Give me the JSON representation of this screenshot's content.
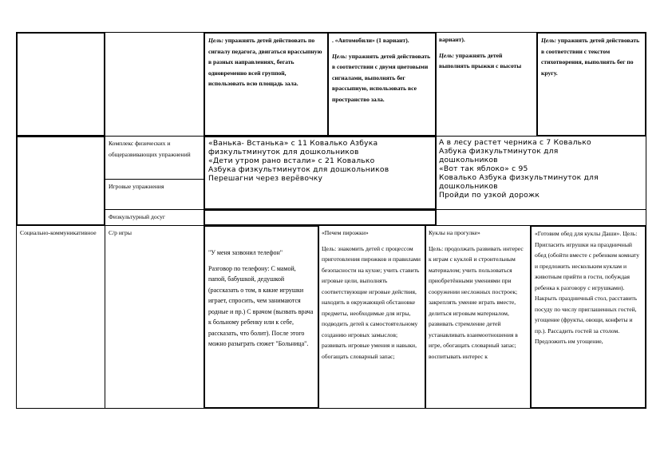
{
  "top_row": {
    "col3": {
      "goal_label": "Цель:",
      "goal_text": "упражнять детей действовать по сигналу педагога, двигаться врассыпную в разных направлениях, бегать одновременно всей группой, использовать всю площадь зала."
    },
    "col4": {
      "title": ". «Автомобили» (1 вариант).",
      "goal_label": "Цель:",
      "goal_text": "упражнять детей действовать в соответствии с двумя цветовыми сигналами, выполнять бег врассыпную, использовать все пространство зала."
    },
    "col5": {
      "title": "вариант).",
      "goal_label": "Цель:",
      "goal_text": "упражнять детей выполнять прыжки с высоты"
    },
    "col6": {
      "goal_label": "Цель:",
      "goal_text": "упражнять детей действовать в соответствии с текстом стихотворения, выполнять бег по кругу."
    }
  },
  "rows": {
    "complex_label": "Комплекс физических и общеразвивающих упражнений",
    "games_label": "Игровые упражнения",
    "leisure_label": "Физкультурный досуг",
    "complex_left": [
      "«Ванька- Встанька» с 11 Ковалько Азбука",
      "физкультминуток для дошкольников",
      "«Дети утром рано встали» с 21 Ковалько",
      "Азбука физкультминуток для дошкольников",
      "Перешагни через верёвочку"
    ],
    "complex_right": [
      "А в лесу растет черника с 7 Ковалько",
      "Азбука физкультминуток для",
      "дошкольников",
      "«Вот так яблоко» с 95",
      "Ковалько Азбука физкультминуток для",
      "дошкольников",
      "Пройди по узкой дорожк"
    ]
  },
  "social": {
    "area": "Социально-коммуникативное",
    "type": "С/р игры",
    "game1": {
      "title": "\"У меня зазвонил телефон\"",
      "text": "Разговор по телефону: С мамой, папой, бабушкой, дедушкой (рассказать о том, в какие игрушки играет, спросить, чем занимаются родные и пр.) С врачом (вызвать врача к больному ребенку или к себе, рассказать, что болит). После этого можно разыграть сюжет \"Больница\"."
    },
    "game2": {
      "title": "«Печем пирожки»",
      "text": "Цель: знакомить детей с процессом приготовления пирожков и правилами безопасности на кухне; учить ставить игровые цели, выполнять соответствующие игровые действия, находить в окружающей обстановке предметы, необходимые для игры, подводить детей к самостоятельному созданию игровых замыслов; развивать игровые умения и навыки, обогащать словарный запас;"
    },
    "game3": {
      "title": "Куклы на прогулке»",
      "text": "Цель: продолжать развивать интерес к играм с куклой и строительным материалом; учить пользоваться приобретёнными умениями при сооружении несложных построек; закреплять умение играть вместе, делиться игровым материалом, развивать стремление детей устанавливать взаимоотношения в игре, обогащать словарный запас; воспитывать интерес к"
    },
    "game4": {
      "title": "«Готовим обед для куклы Даши». Цель:",
      "text": "Пригласить игрушки на праздничный обед (обойти вместе с ребенком комнату и предложить нескольким куклам и животным прийти в гости, побуждая ребенка к разговору с игрушками). Накрыть праздничный стол, расставить посуду по числу приглашенных гостей, угощение (фрукты, овощи, конфеты и пр.). Рассадить гостей за столом. Предложить им угощение,"
    }
  }
}
